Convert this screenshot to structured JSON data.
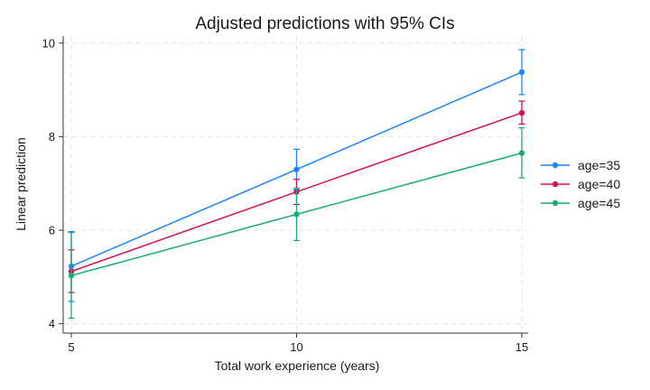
{
  "chart_data": {
    "type": "line",
    "title": "Adjusted predictions with 95% CIs",
    "xlabel": "Total work experience (years)",
    "ylabel": "Linear prediction",
    "x": [
      5,
      10,
      15
    ],
    "xticks": [
      "5",
      "10",
      "15"
    ],
    "yticks": [
      "4",
      "6",
      "8",
      "10"
    ],
    "xlim": [
      5,
      15
    ],
    "ylim": [
      3.8,
      10.15
    ],
    "grid": true,
    "legend_position": "right",
    "series": [
      {
        "name": "age=35",
        "color": "#1a85ff",
        "values": [
          5.23,
          7.3,
          9.38
        ],
        "ci_low": [
          4.48,
          6.87,
          8.9
        ],
        "ci_high": [
          5.97,
          7.73,
          9.86
        ]
      },
      {
        "name": "age=40",
        "color": "#d41159",
        "values": [
          5.12,
          6.82,
          8.51
        ],
        "ci_low": [
          4.67,
          6.55,
          8.27
        ],
        "ci_high": [
          5.58,
          7.09,
          8.76
        ]
      },
      {
        "name": "age=45",
        "color": "#1aab7a",
        "values": [
          5.03,
          6.34,
          7.65
        ],
        "ci_low": [
          4.12,
          5.78,
          7.12
        ],
        "ci_high": [
          5.95,
          6.9,
          8.19
        ]
      }
    ]
  }
}
